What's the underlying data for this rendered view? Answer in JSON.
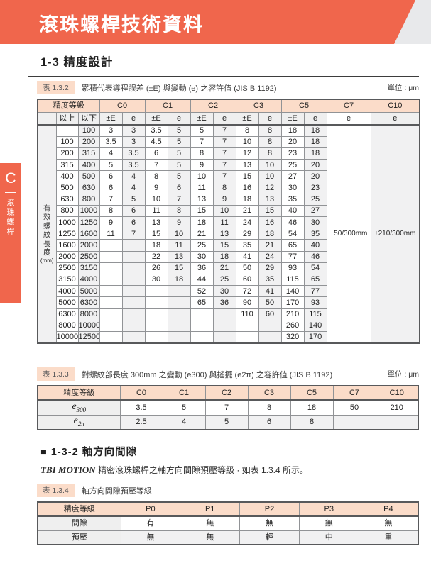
{
  "banner": {
    "title": "滾珠螺桿技術資料",
    "color": "#F0664C"
  },
  "side_tab": {
    "letter": "C",
    "label": "滾珠螺桿"
  },
  "section1": {
    "title": "1-3 精度設計"
  },
  "table_132": {
    "chip": "表 1.3.2",
    "title": "累積代表導程誤差 (±E) 與變動 (e) 之容許值 (JIS B 1192)",
    "unit": "單位 : μm",
    "header_label": "精度等級",
    "col_groups": [
      {
        "label": "C0",
        "span": 2
      },
      {
        "label": "C1",
        "span": 2
      },
      {
        "label": "C2",
        "span": 2
      },
      {
        "label": "C3",
        "span": 2
      },
      {
        "label": "C5",
        "span": 2
      },
      {
        "label": "C7",
        "span": 1
      },
      {
        "label": "C10",
        "span": 1
      }
    ],
    "sub_headers": [
      "以上",
      "以下",
      "±E",
      "e",
      "±E",
      "e",
      "±E",
      "e",
      "±E",
      "e",
      "±E",
      "e",
      "e",
      "e"
    ],
    "row_label": "有效螺紋長度",
    "row_label_unit": "(mm)",
    "c7_value": "±50/300mm",
    "c10_value": "±210/300mm",
    "rows": [
      [
        "",
        "100",
        "3",
        "3",
        "3.5",
        "5",
        "5",
        "7",
        "8",
        "8",
        "18",
        "18"
      ],
      [
        "100",
        "200",
        "3.5",
        "3",
        "4.5",
        "5",
        "7",
        "7",
        "10",
        "8",
        "20",
        "18"
      ],
      [
        "200",
        "315",
        "4",
        "3.5",
        "6",
        "5",
        "8",
        "7",
        "12",
        "8",
        "23",
        "18"
      ],
      [
        "315",
        "400",
        "5",
        "3.5",
        "7",
        "5",
        "9",
        "7",
        "13",
        "10",
        "25",
        "20"
      ],
      [
        "400",
        "500",
        "6",
        "4",
        "8",
        "5",
        "10",
        "7",
        "15",
        "10",
        "27",
        "20"
      ],
      [
        "500",
        "630",
        "6",
        "4",
        "9",
        "6",
        "11",
        "8",
        "16",
        "12",
        "30",
        "23"
      ],
      [
        "630",
        "800",
        "7",
        "5",
        "10",
        "7",
        "13",
        "9",
        "18",
        "13",
        "35",
        "25"
      ],
      [
        "800",
        "1000",
        "8",
        "6",
        "11",
        "8",
        "15",
        "10",
        "21",
        "15",
        "40",
        "27"
      ],
      [
        "1000",
        "1250",
        "9",
        "6",
        "13",
        "9",
        "18",
        "11",
        "24",
        "16",
        "46",
        "30"
      ],
      [
        "1250",
        "1600",
        "11",
        "7",
        "15",
        "10",
        "21",
        "13",
        "29",
        "18",
        "54",
        "35"
      ],
      [
        "1600",
        "2000",
        "",
        "",
        "18",
        "11",
        "25",
        "15",
        "35",
        "21",
        "65",
        "40"
      ],
      [
        "2000",
        "2500",
        "",
        "",
        "22",
        "13",
        "30",
        "18",
        "41",
        "24",
        "77",
        "46"
      ],
      [
        "2500",
        "3150",
        "",
        "",
        "26",
        "15",
        "36",
        "21",
        "50",
        "29",
        "93",
        "54"
      ],
      [
        "3150",
        "4000",
        "",
        "",
        "30",
        "18",
        "44",
        "25",
        "60",
        "35",
        "115",
        "65"
      ],
      [
        "4000",
        "5000",
        "",
        "",
        "",
        "",
        "52",
        "30",
        "72",
        "41",
        "140",
        "77"
      ],
      [
        "5000",
        "6300",
        "",
        "",
        "",
        "",
        "65",
        "36",
        "90",
        "50",
        "170",
        "93"
      ],
      [
        "6300",
        "8000",
        "",
        "",
        "",
        "",
        "",
        "",
        "110",
        "60",
        "210",
        "115"
      ],
      [
        "8000",
        "10000",
        "",
        "",
        "",
        "",
        "",
        "",
        "",
        "",
        "260",
        "140"
      ],
      [
        "10000",
        "12500",
        "",
        "",
        "",
        "",
        "",
        "",
        "",
        "",
        "320",
        "170"
      ]
    ]
  },
  "table_133": {
    "chip": "表 1.3.3",
    "title": "對螺紋部長度 300mm 之變動 (e300) 與搖擺 (e2π) 之容許值 (JIS B 1192)",
    "unit": "單位 : μm",
    "header": [
      "精度等級",
      "C0",
      "C1",
      "C2",
      "C3",
      "C5",
      "C7",
      "C10"
    ],
    "rows": [
      {
        "label": {
          "base": "e",
          "sub": "300"
        },
        "values": [
          "3.5",
          "5",
          "7",
          "8",
          "18",
          "50",
          "210"
        ]
      },
      {
        "label": {
          "base": "e",
          "sub": "2π"
        },
        "values": [
          "2.5",
          "4",
          "5",
          "6",
          "8",
          "",
          ""
        ]
      }
    ]
  },
  "section2": {
    "title": "■ 1-3-2 軸方向間隙"
  },
  "paragraph": {
    "brand": "TBI MOTION",
    "text": " 精密滾珠螺桿之軸方向間隙預壓等級 · 如表 1.3.4 所示。"
  },
  "table_134": {
    "chip": "表 1.3.4",
    "title": "軸方向間隙預壓等級",
    "header": [
      "精度等級",
      "P0",
      "P1",
      "P2",
      "P3",
      "P4"
    ],
    "rows": [
      {
        "label": "間隙",
        "values": [
          "有",
          "無",
          "無",
          "無",
          "無"
        ]
      },
      {
        "label": "預壓",
        "values": [
          "無",
          "無",
          "輕",
          "中",
          "重"
        ]
      }
    ]
  }
}
